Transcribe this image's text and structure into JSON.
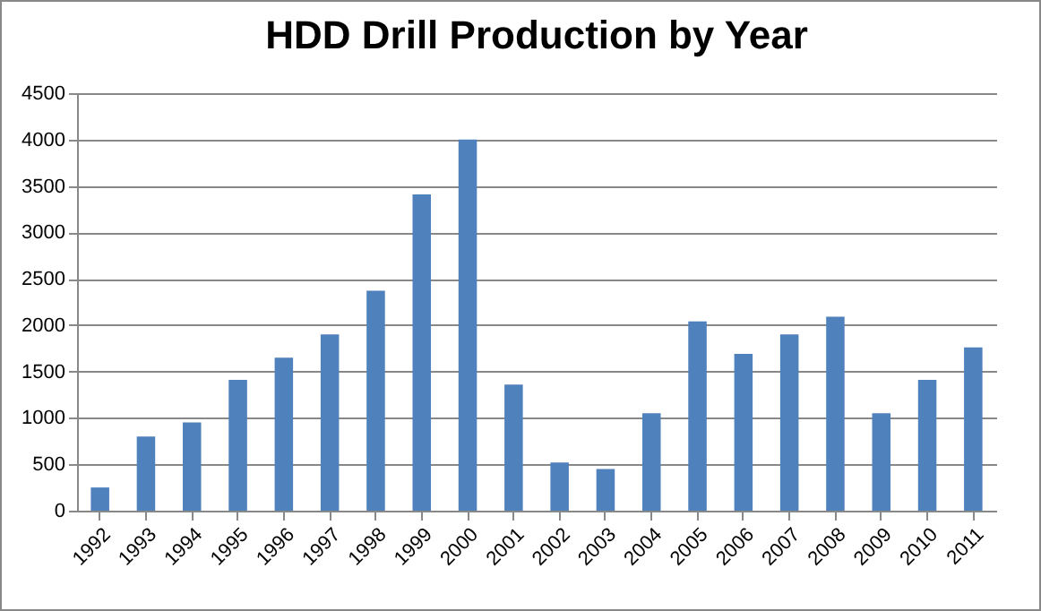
{
  "chart_data": {
    "type": "bar",
    "title": "HDD Drill Production by Year",
    "categories": [
      "1992",
      "1993",
      "1994",
      "1995",
      "1996",
      "1997",
      "1998",
      "1999",
      "2000",
      "2001",
      "2002",
      "2003",
      "2004",
      "2005",
      "2006",
      "2007",
      "2008",
      "2009",
      "2010",
      "2011"
    ],
    "values": [
      250,
      800,
      950,
      1410,
      1650,
      1900,
      2370,
      3410,
      4000,
      1360,
      520,
      450,
      1050,
      2040,
      1690,
      1900,
      2090,
      1050,
      1410,
      1760
    ],
    "color": "#4f81bd",
    "ylim": [
      0,
      4500
    ],
    "yticks": [
      0,
      500,
      1000,
      1500,
      2000,
      2500,
      3000,
      3500,
      4000,
      4500
    ],
    "grid": "y"
  }
}
